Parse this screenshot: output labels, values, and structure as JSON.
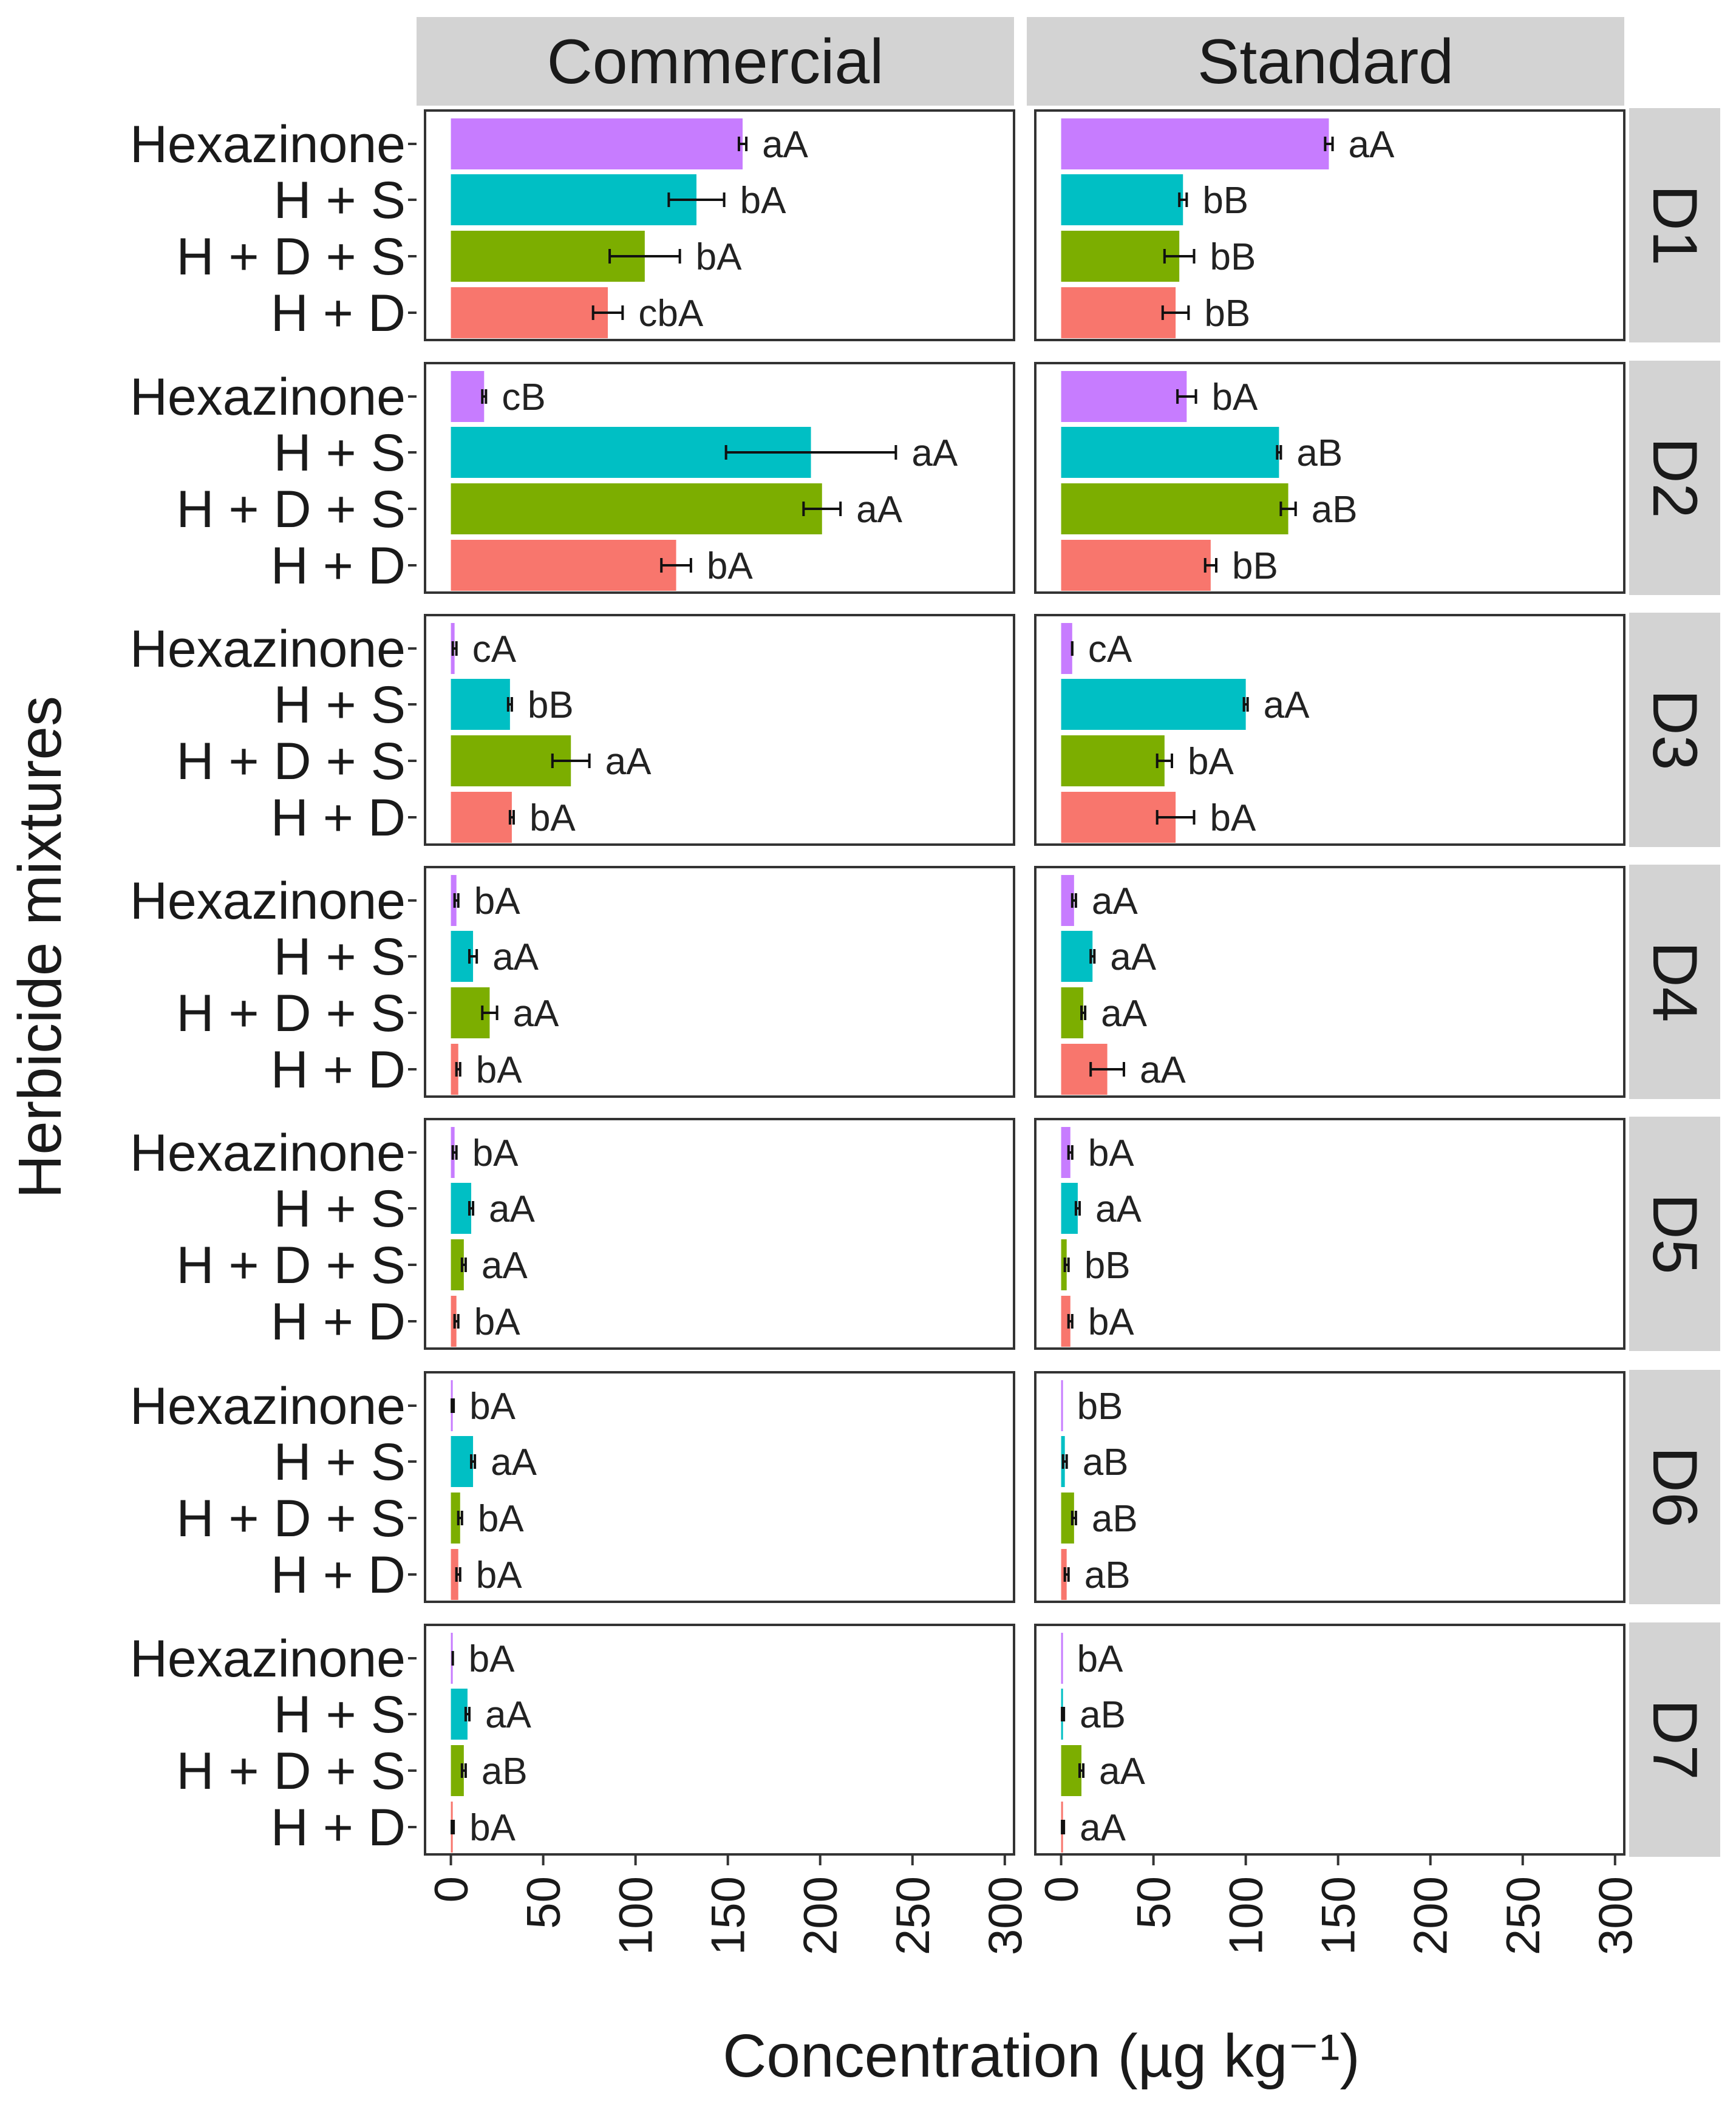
{
  "chart_data": {
    "type": "bar",
    "orientation": "horizontal",
    "facet_columns": [
      "Commercial",
      "Standard"
    ],
    "facet_rows": [
      "D1",
      "D2",
      "D3",
      "D4",
      "D5",
      "D6",
      "D7"
    ],
    "categories": [
      "Hexazinone",
      "H + S",
      "H + D + S",
      "H + D"
    ],
    "colors": {
      "Hexazinone": "#c77cff",
      "H + S": "#00bfc4",
      "H + D + S": "#7cae00",
      "H + D": "#f8766d"
    },
    "xlabel": "Concentration (µg kg⁻¹)",
    "ylabel": "Herbicide mixtures",
    "xlim": [
      -14,
      305
    ],
    "xticks": [
      0,
      50,
      100,
      150,
      200,
      250,
      300
    ],
    "xtick_labels": [
      "0",
      "50",
      "100",
      "150",
      "200",
      "250",
      "300"
    ],
    "panels": [
      {
        "row": "D1",
        "column": "Commercial",
        "bars": [
          {
            "category": "Hexazinone",
            "value": 158,
            "err": 2,
            "label": "aA"
          },
          {
            "category": "H + S",
            "value": 133,
            "err": 15,
            "label": "bA"
          },
          {
            "category": "H + D + S",
            "value": 105,
            "err": 19,
            "label": "bA"
          },
          {
            "category": "H + D",
            "value": 85,
            "err": 8,
            "label": "cbA"
          }
        ]
      },
      {
        "row": "D1",
        "column": "Standard",
        "bars": [
          {
            "category": "Hexazinone",
            "value": 145,
            "err": 2,
            "label": "aA"
          },
          {
            "category": "H + S",
            "value": 66,
            "err": 2,
            "label": "bB"
          },
          {
            "category": "H + D + S",
            "value": 64,
            "err": 8,
            "label": "bB"
          },
          {
            "category": "H + D",
            "value": 62,
            "err": 7,
            "label": "bB"
          }
        ]
      },
      {
        "row": "D2",
        "column": "Commercial",
        "bars": [
          {
            "category": "Hexazinone",
            "value": 18,
            "err": 1,
            "label": "cB"
          },
          {
            "category": "H + S",
            "value": 195,
            "err": 46,
            "label": "aA"
          },
          {
            "category": "H + D + S",
            "value": 201,
            "err": 10,
            "label": "aA"
          },
          {
            "category": "H + D",
            "value": 122,
            "err": 8,
            "label": "bA"
          }
        ]
      },
      {
        "row": "D2",
        "column": "Standard",
        "bars": [
          {
            "category": "Hexazinone",
            "value": 68,
            "err": 5,
            "label": "bA"
          },
          {
            "category": "H + S",
            "value": 118,
            "err": 1,
            "label": "aB"
          },
          {
            "category": "H + D + S",
            "value": 123,
            "err": 4,
            "label": "aB"
          },
          {
            "category": "H + D",
            "value": 81,
            "err": 3,
            "label": "bB"
          }
        ]
      },
      {
        "row": "D3",
        "column": "Commercial",
        "bars": [
          {
            "category": "Hexazinone",
            "value": 2,
            "err": 1,
            "label": "cA"
          },
          {
            "category": "H + S",
            "value": 32,
            "err": 1,
            "label": "bB"
          },
          {
            "category": "H + D + S",
            "value": 65,
            "err": 10,
            "label": "aA"
          },
          {
            "category": "H + D",
            "value": 33,
            "err": 1,
            "label": "bA"
          }
        ]
      },
      {
        "row": "D3",
        "column": "Standard",
        "bars": [
          {
            "category": "Hexazinone",
            "value": 6,
            "err": 0,
            "label": "cA"
          },
          {
            "category": "H + S",
            "value": 100,
            "err": 1,
            "label": "aA"
          },
          {
            "category": "H + D + S",
            "value": 56,
            "err": 4,
            "label": "bA"
          },
          {
            "category": "H + D",
            "value": 62,
            "err": 10,
            "label": "bA"
          }
        ]
      },
      {
        "row": "D4",
        "column": "Commercial",
        "bars": [
          {
            "category": "Hexazinone",
            "value": 3,
            "err": 1,
            "label": "bA"
          },
          {
            "category": "H + S",
            "value": 12,
            "err": 2,
            "label": "aA"
          },
          {
            "category": "H + D + S",
            "value": 21,
            "err": 4,
            "label": "aA"
          },
          {
            "category": "H + D",
            "value": 4,
            "err": 1,
            "label": "bA"
          }
        ]
      },
      {
        "row": "D4",
        "column": "Standard",
        "bars": [
          {
            "category": "Hexazinone",
            "value": 7,
            "err": 1,
            "label": "aA"
          },
          {
            "category": "H + S",
            "value": 17,
            "err": 1,
            "label": "aA"
          },
          {
            "category": "H + D + S",
            "value": 12,
            "err": 1,
            "label": "aA"
          },
          {
            "category": "H + D",
            "value": 25,
            "err": 9,
            "label": "aA"
          }
        ]
      },
      {
        "row": "D5",
        "column": "Commercial",
        "bars": [
          {
            "category": "Hexazinone",
            "value": 2,
            "err": 1,
            "label": "bA"
          },
          {
            "category": "H + S",
            "value": 11,
            "err": 1,
            "label": "aA"
          },
          {
            "category": "H + D + S",
            "value": 7,
            "err": 1,
            "label": "aA"
          },
          {
            "category": "H + D",
            "value": 3,
            "err": 1,
            "label": "bA"
          }
        ]
      },
      {
        "row": "D5",
        "column": "Standard",
        "bars": [
          {
            "category": "Hexazinone",
            "value": 5,
            "err": 1,
            "label": "bA"
          },
          {
            "category": "H + S",
            "value": 9,
            "err": 1,
            "label": "aA"
          },
          {
            "category": "H + D + S",
            "value": 3,
            "err": 1,
            "label": "bB"
          },
          {
            "category": "H + D",
            "value": 5,
            "err": 1,
            "label": "bA"
          }
        ]
      },
      {
        "row": "D6",
        "column": "Commercial",
        "bars": [
          {
            "category": "Hexazinone",
            "value": 1,
            "err": 0.5,
            "label": "bA"
          },
          {
            "category": "H + S",
            "value": 12,
            "err": 1,
            "label": "aA"
          },
          {
            "category": "H + D + S",
            "value": 5,
            "err": 1,
            "label": "bA"
          },
          {
            "category": "H + D",
            "value": 4,
            "err": 1,
            "label": "bA"
          }
        ]
      },
      {
        "row": "D6",
        "column": "Standard",
        "bars": [
          {
            "category": "Hexazinone",
            "value": 0,
            "err": 0,
            "label": "bB"
          },
          {
            "category": "H + S",
            "value": 2,
            "err": 1,
            "label": "aB"
          },
          {
            "category": "H + D + S",
            "value": 7,
            "err": 1,
            "label": "aB"
          },
          {
            "category": "H + D",
            "value": 3,
            "err": 1,
            "label": "aB"
          }
        ]
      },
      {
        "row": "D7",
        "column": "Commercial",
        "bars": [
          {
            "category": "Hexazinone",
            "value": 1,
            "err": 0,
            "label": "bA"
          },
          {
            "category": "H + S",
            "value": 9,
            "err": 1,
            "label": "aA"
          },
          {
            "category": "H + D + S",
            "value": 7,
            "err": 1,
            "label": "aB"
          },
          {
            "category": "H + D",
            "value": 1,
            "err": 0.5,
            "label": "bA"
          }
        ]
      },
      {
        "row": "D7",
        "column": "Standard",
        "bars": [
          {
            "category": "Hexazinone",
            "value": 0,
            "err": 0,
            "label": "bA"
          },
          {
            "category": "H + S",
            "value": 1,
            "err": 0.5,
            "label": "aB"
          },
          {
            "category": "H + D + S",
            "value": 11,
            "err": 1,
            "label": "aA"
          },
          {
            "category": "H + D",
            "value": 1,
            "err": 0.5,
            "label": "aA"
          }
        ]
      }
    ]
  }
}
